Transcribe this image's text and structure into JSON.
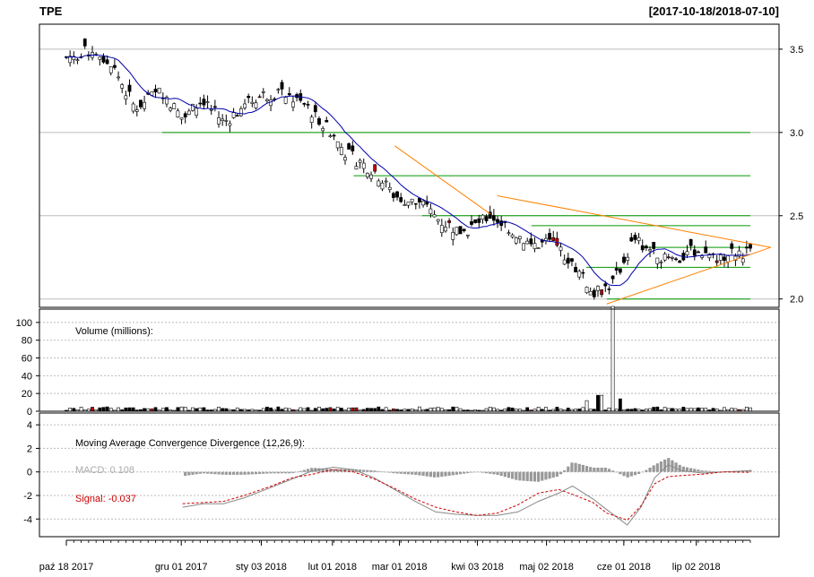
{
  "header": {
    "symbol": "TPE",
    "range": "[2017-10-18/2018-07-10]"
  },
  "chart_data": [
    {
      "type": "candlestick",
      "name": "price",
      "ylim": [
        1.95,
        3.65
      ],
      "yticks": [
        2.0,
        2.5,
        3.0,
        3.5
      ],
      "ytick_labels": [
        "2.0",
        "2.5",
        "3.0",
        "3.5"
      ],
      "support_resistance_levels": [
        3.0,
        2.74,
        2.5,
        2.44,
        2.31,
        2.19,
        2.0
      ],
      "trendlines": [
        {
          "x0": 0.48,
          "y0": 2.92,
          "x1": 0.62,
          "y1": 2.51
        },
        {
          "x0": 0.63,
          "y0": 2.62,
          "x1": 1.03,
          "y1": 2.31
        },
        {
          "x0": 0.79,
          "y0": 1.97,
          "x1": 1.03,
          "y1": 2.31
        }
      ],
      "approx_close_path": [
        [
          0.0,
          3.45
        ],
        [
          0.04,
          3.5
        ],
        [
          0.07,
          3.38
        ],
        [
          0.1,
          3.15
        ],
        [
          0.14,
          3.25
        ],
        [
          0.17,
          3.08
        ],
        [
          0.2,
          3.2
        ],
        [
          0.23,
          3.06
        ],
        [
          0.28,
          3.22
        ],
        [
          0.31,
          3.24
        ],
        [
          0.35,
          3.16
        ],
        [
          0.38,
          3.04
        ],
        [
          0.41,
          2.87
        ],
        [
          0.45,
          2.77
        ],
        [
          0.48,
          2.62
        ],
        [
          0.52,
          2.56
        ],
        [
          0.55,
          2.46
        ],
        [
          0.58,
          2.4
        ],
        [
          0.62,
          2.5
        ],
        [
          0.65,
          2.42
        ],
        [
          0.68,
          2.32
        ],
        [
          0.71,
          2.34
        ],
        [
          0.74,
          2.22
        ],
        [
          0.77,
          2.03
        ],
        [
          0.8,
          2.1
        ],
        [
          0.83,
          2.36
        ],
        [
          0.86,
          2.28
        ],
        [
          0.89,
          2.22
        ],
        [
          0.92,
          2.3
        ],
        [
          0.95,
          2.25
        ],
        [
          0.98,
          2.28
        ]
      ]
    },
    {
      "type": "bar",
      "name": "volume",
      "label": "Volume (millions):",
      "ylim": [
        0,
        115
      ],
      "yticks": [
        0,
        20,
        40,
        60,
        80,
        100
      ],
      "ytick_labels": [
        "0",
        "20",
        "40",
        "60",
        "80",
        "100"
      ],
      "spike": {
        "x": 0.8,
        "value": 118
      },
      "secondary_spikes": [
        {
          "x": 0.78,
          "value": 18
        },
        {
          "x": 0.81,
          "value": 14
        },
        {
          "x": 0.76,
          "value": 12
        }
      ]
    },
    {
      "type": "line",
      "name": "macd",
      "label": "Moving Average Convergence Divergence (12,26,9):",
      "macd_label": "MACD: 0.108",
      "signal_label": "Signal: -0.037",
      "ylim": [
        -5.5,
        5
      ],
      "yticks": [
        -4,
        -2,
        0,
        2,
        4
      ],
      "ytick_labels": [
        "-4",
        "-2",
        "0",
        "2",
        "4"
      ],
      "macd_line": [
        [
          0.17,
          -3.0
        ],
        [
          0.2,
          -2.7
        ],
        [
          0.23,
          -2.7
        ],
        [
          0.26,
          -2.2
        ],
        [
          0.3,
          -1.3
        ],
        [
          0.33,
          -0.6
        ],
        [
          0.36,
          0.1
        ],
        [
          0.39,
          0.4
        ],
        [
          0.42,
          0.2
        ],
        [
          0.45,
          -0.5
        ],
        [
          0.48,
          -1.5
        ],
        [
          0.51,
          -2.5
        ],
        [
          0.54,
          -3.4
        ],
        [
          0.57,
          -3.6
        ],
        [
          0.6,
          -3.7
        ],
        [
          0.63,
          -3.7
        ],
        [
          0.66,
          -3.4
        ],
        [
          0.69,
          -2.5
        ],
        [
          0.72,
          -1.8
        ],
        [
          0.74,
          -1.2
        ],
        [
          0.77,
          -2.3
        ],
        [
          0.79,
          -3.2
        ],
        [
          0.82,
          -4.5
        ],
        [
          0.84,
          -3.0
        ],
        [
          0.86,
          -0.5
        ],
        [
          0.88,
          0.6
        ],
        [
          0.9,
          0.1
        ],
        [
          0.93,
          -0.1
        ],
        [
          0.96,
          0.0
        ],
        [
          1.0,
          0.1
        ]
      ],
      "signal_line": [
        [
          0.17,
          -2.7
        ],
        [
          0.2,
          -2.6
        ],
        [
          0.23,
          -2.5
        ],
        [
          0.26,
          -2.0
        ],
        [
          0.3,
          -1.2
        ],
        [
          0.33,
          -0.5
        ],
        [
          0.36,
          -0.2
        ],
        [
          0.39,
          0.2
        ],
        [
          0.42,
          0.0
        ],
        [
          0.45,
          -0.6
        ],
        [
          0.48,
          -1.4
        ],
        [
          0.51,
          -2.3
        ],
        [
          0.54,
          -3.0
        ],
        [
          0.57,
          -3.4
        ],
        [
          0.6,
          -3.7
        ],
        [
          0.63,
          -3.5
        ],
        [
          0.66,
          -2.8
        ],
        [
          0.69,
          -1.8
        ],
        [
          0.72,
          -1.5
        ],
        [
          0.74,
          -1.9
        ],
        [
          0.77,
          -2.6
        ],
        [
          0.79,
          -3.5
        ],
        [
          0.82,
          -4.1
        ],
        [
          0.84,
          -2.9
        ],
        [
          0.86,
          -1.0
        ],
        [
          0.88,
          -0.4
        ],
        [
          0.9,
          -0.3
        ],
        [
          0.93,
          -0.2
        ],
        [
          0.96,
          0.0
        ],
        [
          1.0,
          -0.04
        ]
      ],
      "histogram_peaks": [
        {
          "x": 0.22,
          "value": 0.7
        },
        {
          "x": 0.31,
          "value": 0.5
        },
        {
          "x": 0.37,
          "value": 0.6
        },
        {
          "x": 0.43,
          "value": -1.3
        },
        {
          "x": 0.57,
          "value": 0.8
        },
        {
          "x": 0.62,
          "value": 0.9
        },
        {
          "x": 0.76,
          "value": -1.3
        },
        {
          "x": 0.83,
          "value": 1.8
        },
        {
          "x": 0.88,
          "value": 0.3
        }
      ]
    }
  ],
  "x_axis": {
    "tick_labels": [
      "paź 18 2017",
      "gru 01 2017",
      "sty 03 2018",
      "lut 01 2018",
      "mar 01 2018",
      "kwi 03 2018",
      "maj 02 2018",
      "cze 01 2018",
      "lip 02 2018"
    ],
    "tick_positions": [
      0.0,
      0.168,
      0.285,
      0.389,
      0.487,
      0.601,
      0.702,
      0.815,
      0.921
    ]
  },
  "colors": {
    "grid": "#aaaaaa",
    "hline": "#009900",
    "trend": "#ff8000",
    "ma": "#0000aa",
    "up_candle": "#ffffff",
    "down_candle": "#000000",
    "red_candle": "#c00000",
    "macd_hist": "#999999",
    "macd_line": "#888888",
    "signal_line": "#cc0000"
  }
}
